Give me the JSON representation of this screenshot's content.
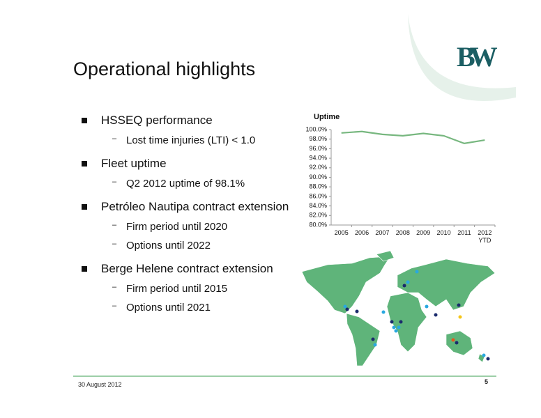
{
  "slide": {
    "title": "Operational highlights",
    "logo": "BW",
    "bullets": [
      {
        "text": "HSSEQ performance",
        "subs": [
          "Lost time injuries (LTI) < 1.0"
        ]
      },
      {
        "text": "Fleet uptime",
        "subs": [
          "Q2 2012 uptime of 98.1%"
        ]
      },
      {
        "text": "Petróleo Nautipa contract extension",
        "subs": [
          "Firm period until  2020",
          "Options until 2022"
        ]
      },
      {
        "text": "Berge Helene contract extension",
        "subs": [
          "Firm period until 2015",
          "Options until 2021"
        ]
      }
    ],
    "footer_date": "30 August 2012",
    "page_number": "5"
  },
  "chart_data": {
    "type": "line",
    "title": "Uptime",
    "categories": [
      "2005",
      "2006",
      "2007",
      "2008",
      "2009",
      "2010",
      "2011",
      "2012 YTD"
    ],
    "values": [
      99.3,
      99.6,
      99.0,
      98.7,
      99.2,
      98.7,
      97.1,
      97.8
    ],
    "color": "#77b77f",
    "ylim": [
      80,
      100
    ],
    "yticks": [
      {
        "value": 80,
        "label": "80.0%"
      },
      {
        "value": 82,
        "label": "82.0%"
      },
      {
        "value": 84,
        "label": "84.0%"
      },
      {
        "value": 86,
        "label": "86.0%"
      },
      {
        "value": 88,
        "label": "88.0%"
      },
      {
        "value": 90,
        "label": "90.0%"
      },
      {
        "value": 92,
        "label": "92.0%"
      },
      {
        "value": 94,
        "label": "94.0%"
      },
      {
        "value": 96,
        "label": "96.0%"
      },
      {
        "value": 98,
        "label": "98.0%"
      },
      {
        "value": 100,
        "label": "100.0%"
      }
    ],
    "grid": false
  }
}
